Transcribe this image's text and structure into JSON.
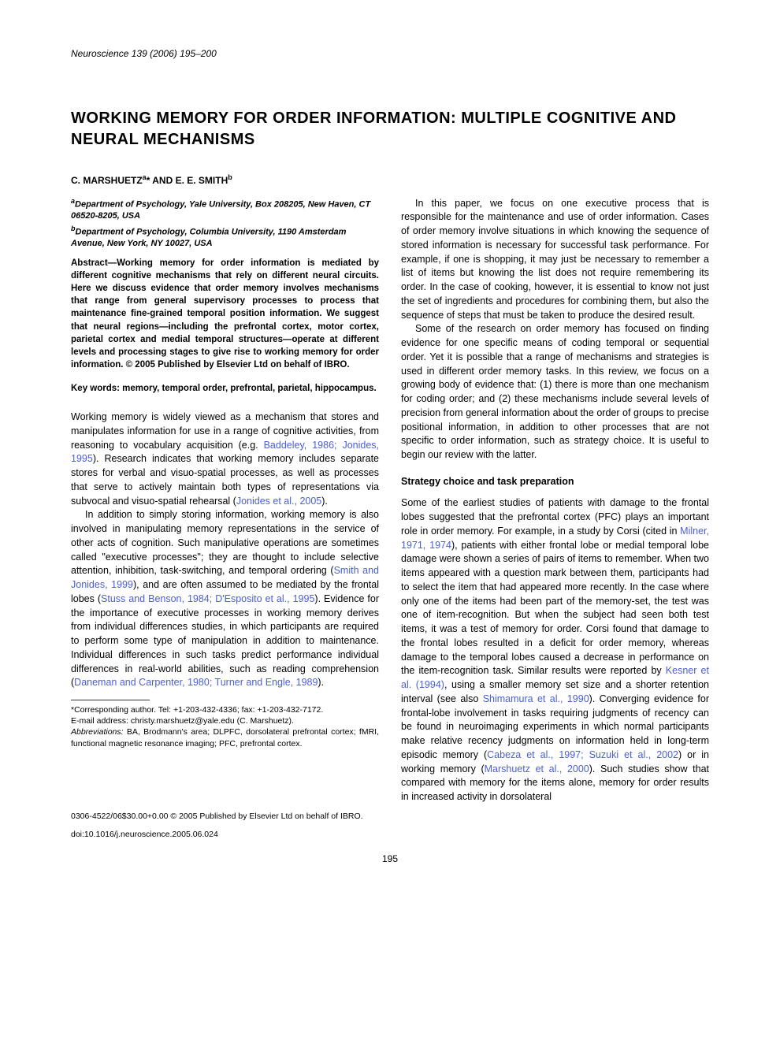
{
  "journal": {
    "name": "Neuroscience",
    "volume_pages": "139 (2006) 195–200"
  },
  "title": "WORKING MEMORY FOR ORDER INFORMATION: MULTIPLE COGNITIVE AND NEURAL MECHANISMS",
  "authors": {
    "line": "C. MARSHUETZ",
    "sup_a": "a",
    "asterisk": "*",
    "and": " AND E. E. SMITH",
    "sup_b": "b"
  },
  "affiliations": {
    "a_sup": "a",
    "a": "Department of Psychology, Yale University, Box 208205, New Haven, CT 06520-8205, USA",
    "b_sup": "b",
    "b": "Department of Psychology, Columbia University, 1190 Amsterdam Avenue, New York, NY 10027, USA"
  },
  "abstract": "Abstract—Working memory for order information is mediated by different cognitive mechanisms that rely on different neural circuits. Here we discuss evidence that order memory involves mechanisms that range from general supervisory processes to process that maintenance fine-grained temporal position information. We suggest that neural regions—including the prefrontal cortex, motor cortex, parietal cortex and medial temporal structures—operate at different levels and processing stages to give rise to working memory for order information. © 2005 Published by Elsevier Ltd on behalf of IBRO.",
  "keywords": "Key words: memory, temporal order, prefrontal, parietal, hippocampus.",
  "body": {
    "p1a": "Working memory is widely viewed as a mechanism that stores and manipulates information for use in a range of cognitive activities, from reasoning to vocabulary acquisition (e.g. ",
    "p1c1": "Baddeley, 1986; Jonides, 1995",
    "p1b": "). Research indicates that working memory includes separate stores for verbal and visuo-spatial processes, as well as processes that serve to actively maintain both types of representations via subvocal and visuo-spatial rehearsal (",
    "p1c2": "Jonides et al., 2005",
    "p1d": ").",
    "p2a": "In addition to simply storing information, working memory is also involved in manipulating memory representations in the service of other acts of cognition. Such manipulative operations are sometimes called \"executive processes\"; they are thought to include selective attention, inhibition, task-switching, and temporal ordering (",
    "p2c1": "Smith and Jonides, 1999",
    "p2b": "), and are often assumed to be mediated by the frontal lobes (",
    "p2c2": "Stuss and Benson, 1984; D'Esposito et al., 1995",
    "p2c": "). Evidence for the importance of executive processes in working memory derives from individual differences studies, in which participants are required to perform some type of manipulation in addition to maintenance. Individual differences in such tasks predict performance individual differences in real-world abilities, such as reading comprehension (",
    "p2c3": "Daneman and Carpenter, 1980; Turner and Engle, 1989",
    "p2d": ").",
    "p3": "In this paper, we focus on one executive process that is responsible for the maintenance and use of order information. Cases of order memory involve situations in which knowing the sequence of stored information is necessary for successful task performance. For example, if one is shopping, it may just be necessary to remember a list of items but knowing the list does not require remembering its order. In the case of cooking, however, it is essential to know not just the set of ingredients and procedures for combining them, but also the sequence of steps that must be taken to produce the desired result.",
    "p4": "Some of the research on order memory has focused on finding evidence for one specific means of coding temporal or sequential order. Yet it is possible that a range of mechanisms and strategies is used in different order memory tasks. In this review, we focus on a growing body of evidence that: (1) there is more than one mechanism for coding order; and (2) these mechanisms include several levels of precision from general information about the order of groups to precise positional information, in addition to other processes that are not specific to order information, such as strategy choice. It is useful to begin our review with the latter.",
    "section1": "Strategy choice and task preparation",
    "p5a": "Some of the earliest studies of patients with damage to the frontal lobes suggested that the prefrontal cortex (PFC) plays an important role in order memory. For example, in a study by Corsi (cited in ",
    "p5c1": "Milner, 1971, 1974",
    "p5b": "), patients with either frontal lobe or medial temporal lobe damage were shown a series of pairs of items to remember. When two items appeared with a question mark between them, participants had to select the item that had appeared more recently. In the case where only one of the items had been part of the memory-set, the test was one of item-recognition. But when the subject had seen both test items, it was a test of memory for order. Corsi found that damage to the frontal lobes resulted in a deficit for order memory, whereas damage to the temporal lobes caused a decrease in performance on the item-recognition task. Similar results were reported by ",
    "p5c2": "Kesner et al. (1994)",
    "p5c": ", using a smaller memory set size and a shorter retention interval (see also ",
    "p5c3": "Shimamura et al., 1990",
    "p5d": "). Converging evidence for frontal-lobe involvement in tasks requiring judgments of recency can be found in neuroimaging experiments in which normal participants make relative recency judgments on information held in long-term episodic memory (",
    "p5c4": "Cabeza et al., 1997; Suzuki et al., 2002",
    "p5e": ") or in working memory (",
    "p5c5": "Marshuetz et al., 2000",
    "p5f": "). Such studies show that compared with memory for the items alone, memory for order results in increased activity in dorsolateral"
  },
  "footnotes": {
    "corr_label": "*Corresponding author. Tel: +1-203-432-4336; fax: +1-203-432-7172.",
    "email_label": "E-mail address: christy.marshuetz@yale.edu (C. Marshuetz).",
    "abbrev_label": "Abbreviations:",
    "abbrev": " BA, Brodmann's area; DLPFC, dorsolateral prefrontal cortex; fMRI, functional magnetic resonance imaging; PFC, prefrontal cortex."
  },
  "copyright": "0306-4522/06$30.00+0.00 © 2005 Published by Elsevier Ltd on behalf of IBRO.",
  "doi": "doi:10.1016/j.neuroscience.2005.06.024",
  "page_number": "195",
  "colors": {
    "citation": "#4a5fd8",
    "text": "#000000",
    "background": "#ffffff"
  }
}
